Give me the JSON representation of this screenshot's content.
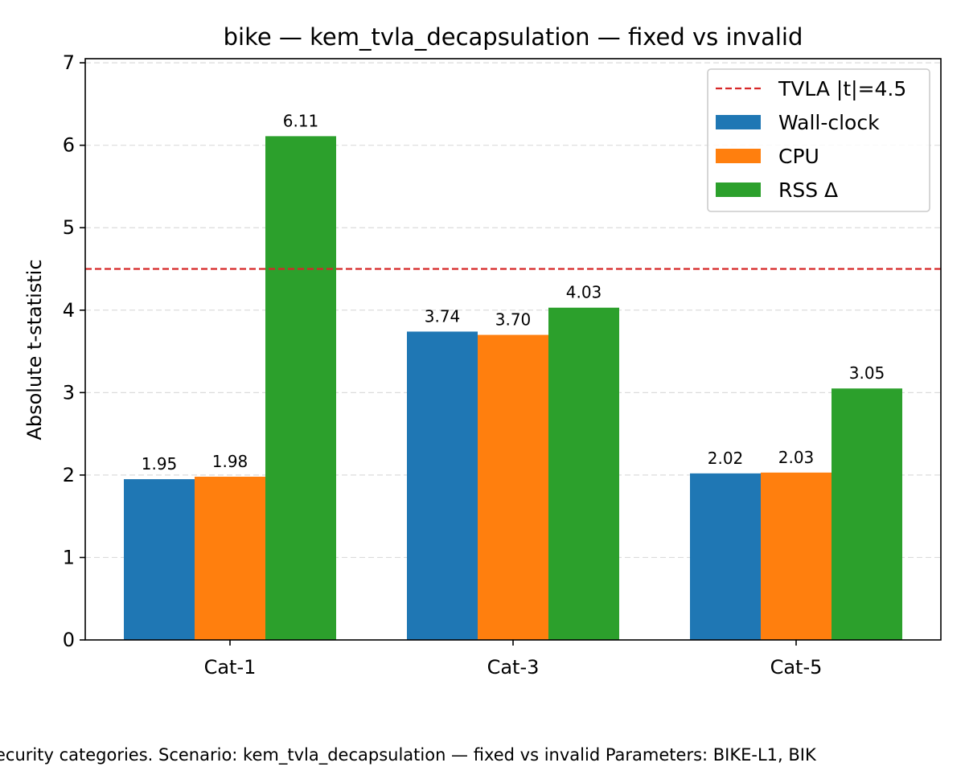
{
  "chart_data": {
    "type": "bar",
    "title": "bike — kem_tvla_decapsulation — fixed vs invalid",
    "xlabel": "",
    "ylabel": "Absolute t-statistic",
    "categories": [
      "Cat-1",
      "Cat-3",
      "Cat-5"
    ],
    "series": [
      {
        "name": "Wall-clock",
        "color": "#1f77b4",
        "values": [
          1.95,
          3.74,
          2.02
        ],
        "labels": [
          "1.95",
          "3.74",
          "2.02"
        ]
      },
      {
        "name": "CPU",
        "color": "#ff7f0e",
        "values": [
          1.98,
          3.7,
          2.03
        ],
        "labels": [
          "1.98",
          "3.70",
          "2.03"
        ]
      },
      {
        "name": "RSS Δ",
        "color": "#2ca02c",
        "values": [
          6.11,
          4.03,
          3.05
        ],
        "labels": [
          "6.11",
          "4.03",
          "3.05"
        ]
      }
    ],
    "threshold": {
      "value": 4.5,
      "label": "TVLA |t|=4.5",
      "color": "#d62728"
    },
    "ylim": [
      0,
      7.05
    ],
    "yticks": [
      0,
      1,
      2,
      3,
      4,
      5,
      6,
      7
    ],
    "grid": "y-dashed",
    "legend_position": "top-right"
  },
  "caption": "ecurity categories. Scenario: kem_tvla_decapsulation — fixed vs invalid Parameters: BIKE-L1, BIK"
}
